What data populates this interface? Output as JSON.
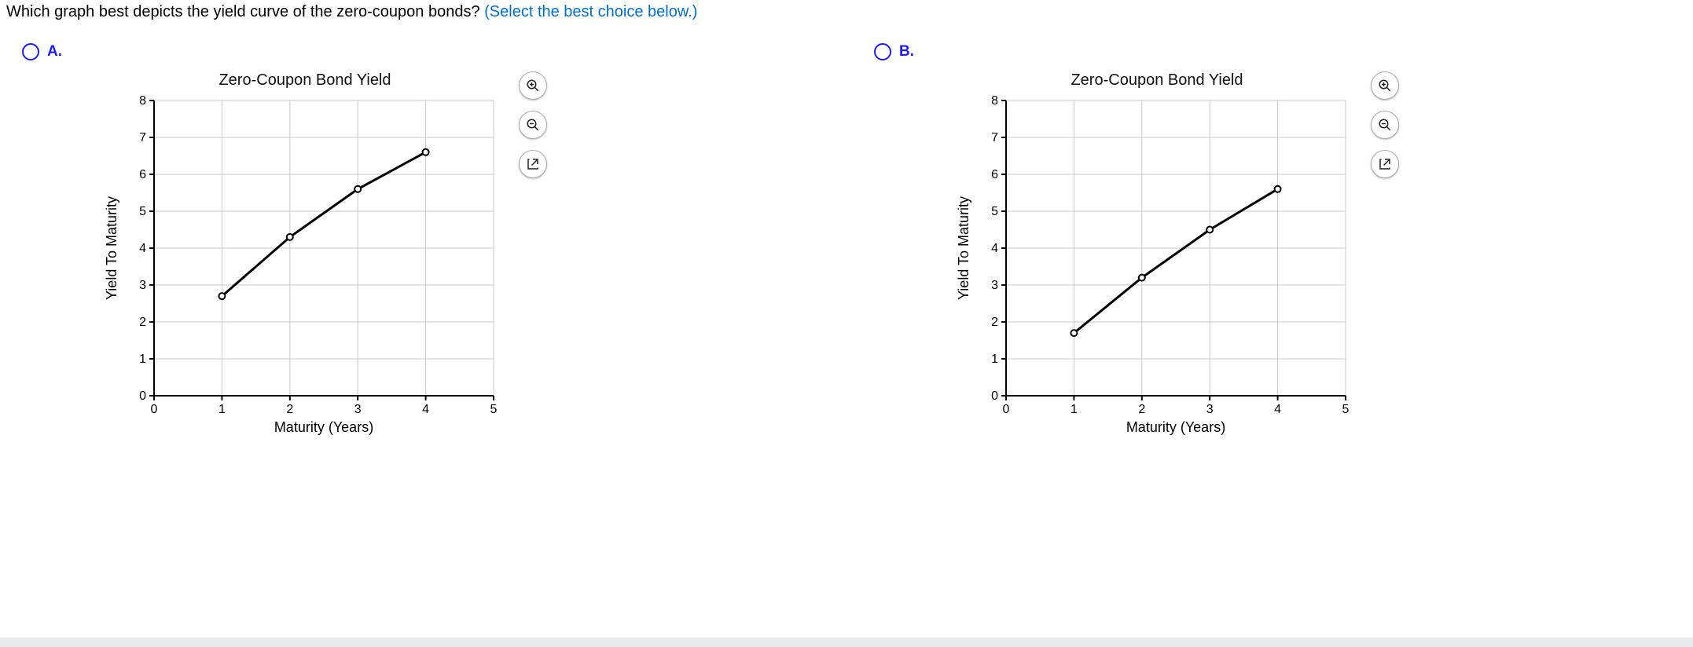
{
  "question": {
    "text": "Which graph best depicts the yield curve of the zero-coupon bonds?",
    "hint": "(Select the best choice below.)",
    "hint_color": "#0070cc"
  },
  "options": [
    {
      "label": "A.",
      "chart": {
        "type": "line",
        "title": "Zero-Coupon Bond Yield",
        "xlabel": "Maturity (Years)",
        "ylabel": "Yield To Maturity",
        "xlim": [
          0,
          5
        ],
        "xtick_step": 1,
        "ylim": [
          0,
          8
        ],
        "ytick_step": 1,
        "x": [
          1,
          2,
          3,
          4
        ],
        "y": [
          2.7,
          4.3,
          5.6,
          6.6
        ],
        "line_color": "#000000",
        "line_width": 3,
        "marker": "circle",
        "marker_fill": "#ffffff",
        "marker_stroke": "#000000",
        "marker_radius": 4,
        "grid_color": "#c9c9c9",
        "axis_color": "#000000",
        "label_fontsize": 18,
        "title_fontsize": 20,
        "tick_fontsize": 16
      }
    },
    {
      "label": "B.",
      "chart": {
        "type": "line",
        "title": "Zero-Coupon Bond Yield",
        "xlabel": "Maturity (Years)",
        "ylabel": "Yield To Maturity",
        "xlim": [
          0,
          5
        ],
        "xtick_step": 1,
        "ylim": [
          0,
          8
        ],
        "ytick_step": 1,
        "x": [
          1,
          2,
          3,
          4
        ],
        "y": [
          1.7,
          3.2,
          4.5,
          5.6
        ],
        "line_color": "#000000",
        "line_width": 3,
        "marker": "circle",
        "marker_fill": "#ffffff",
        "marker_stroke": "#000000",
        "marker_radius": 4,
        "grid_color": "#c9c9c9",
        "axis_color": "#000000",
        "label_fontsize": 18,
        "title_fontsize": 20,
        "tick_fontsize": 16
      }
    }
  ],
  "tools": {
    "zoom_in": "zoom-in",
    "zoom_out": "zoom-out",
    "open": "open-external"
  }
}
